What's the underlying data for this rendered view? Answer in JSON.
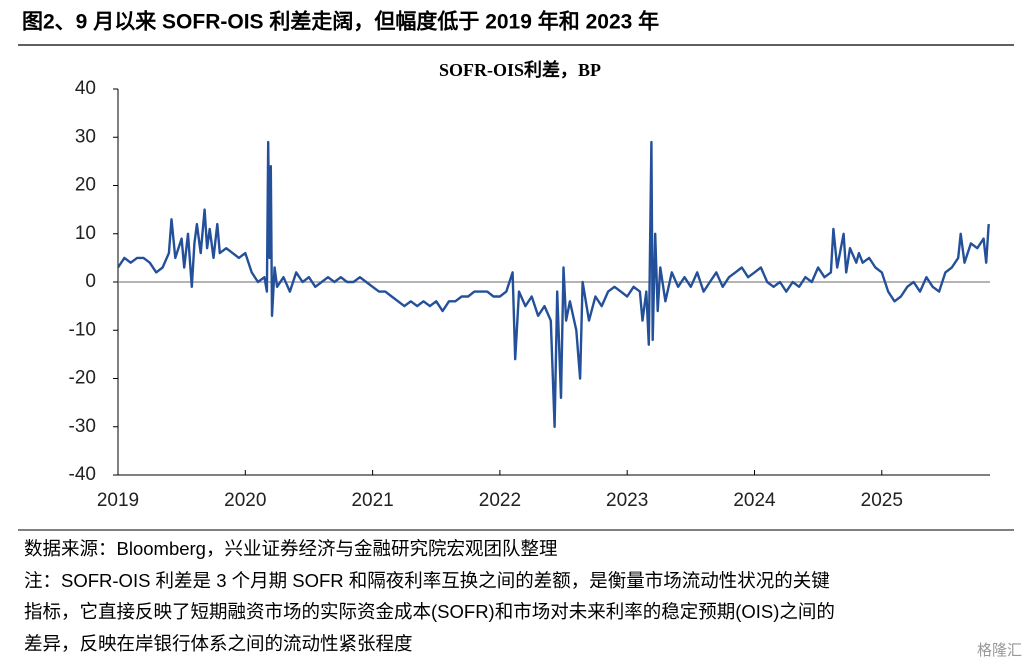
{
  "header": {
    "title": "图2、9 月以来 SOFR-OIS 利差走阔，但幅度低于 2019 年和 2023 年"
  },
  "chart_data": {
    "type": "line",
    "title": "SOFR-OIS利差，BP",
    "xlim": [
      2019,
      2025.85
    ],
    "xticks": [
      2019,
      2020,
      2021,
      2022,
      2023,
      2024,
      2025
    ],
    "ylim": [
      -40,
      40
    ],
    "yticks": [
      -40,
      -30,
      -20,
      -10,
      0,
      10,
      20,
      30,
      40
    ],
    "series": [
      {
        "color": "#24509a",
        "x": [
          2019.0,
          2019.05,
          2019.1,
          2019.15,
          2019.2,
          2019.25,
          2019.3,
          2019.35,
          2019.4,
          2019.42,
          2019.45,
          2019.5,
          2019.52,
          2019.55,
          2019.58,
          2019.6,
          2019.62,
          2019.65,
          2019.68,
          2019.7,
          2019.72,
          2019.75,
          2019.78,
          2019.8,
          2019.85,
          2019.9,
          2019.95,
          2020.0,
          2020.05,
          2020.1,
          2020.15,
          2020.17,
          2020.18,
          2020.19,
          2020.2,
          2020.21,
          2020.23,
          2020.25,
          2020.3,
          2020.35,
          2020.4,
          2020.45,
          2020.5,
          2020.55,
          2020.6,
          2020.65,
          2020.7,
          2020.75,
          2020.8,
          2020.85,
          2020.9,
          2020.95,
          2021.0,
          2021.05,
          2021.1,
          2021.15,
          2021.2,
          2021.25,
          2021.3,
          2021.35,
          2021.4,
          2021.45,
          2021.5,
          2021.55,
          2021.6,
          2021.65,
          2021.7,
          2021.75,
          2021.8,
          2021.85,
          2021.9,
          2021.95,
          2022.0,
          2022.05,
          2022.1,
          2022.12,
          2022.15,
          2022.2,
          2022.25,
          2022.3,
          2022.35,
          2022.4,
          2022.43,
          2022.45,
          2022.48,
          2022.5,
          2022.52,
          2022.55,
          2022.6,
          2022.63,
          2022.65,
          2022.7,
          2022.75,
          2022.8,
          2022.85,
          2022.9,
          2022.95,
          2023.0,
          2023.05,
          2023.1,
          2023.12,
          2023.15,
          2023.17,
          2023.19,
          2023.2,
          2023.22,
          2023.24,
          2023.26,
          2023.3,
          2023.35,
          2023.4,
          2023.45,
          2023.5,
          2023.55,
          2023.6,
          2023.65,
          2023.7,
          2023.75,
          2023.8,
          2023.85,
          2023.9,
          2023.95,
          2024.0,
          2024.05,
          2024.1,
          2024.15,
          2024.2,
          2024.25,
          2024.3,
          2024.35,
          2024.4,
          2024.45,
          2024.5,
          2024.55,
          2024.6,
          2024.62,
          2024.65,
          2024.7,
          2024.72,
          2024.75,
          2024.8,
          2024.82,
          2024.85,
          2024.9,
          2024.95,
          2025.0,
          2025.05,
          2025.1,
          2025.15,
          2025.2,
          2025.25,
          2025.3,
          2025.35,
          2025.4,
          2025.45,
          2025.5,
          2025.55,
          2025.6,
          2025.62,
          2025.65,
          2025.7,
          2025.75,
          2025.8,
          2025.82,
          2025.84
        ],
        "values": [
          3,
          5,
          4,
          5,
          5,
          4,
          2,
          3,
          6,
          13,
          5,
          9,
          3,
          10,
          -1,
          8,
          12,
          6,
          15,
          7,
          11,
          5,
          12,
          6,
          7,
          6,
          5,
          6,
          2,
          0,
          1,
          -2,
          29,
          5,
          24,
          -7,
          3,
          -1,
          1,
          -2,
          2,
          0,
          1,
          -1,
          0,
          1,
          0,
          1,
          0,
          0,
          1,
          0,
          -1,
          -2,
          -2,
          -3,
          -4,
          -5,
          -4,
          -5,
          -4,
          -5,
          -4,
          -6,
          -4,
          -4,
          -3,
          -3,
          -2,
          -2,
          -2,
          -3,
          -3,
          -2,
          2,
          -16,
          -2,
          -5,
          -3,
          -7,
          -5,
          -8,
          -30,
          -2,
          -24,
          3,
          -8,
          -4,
          -10,
          -20,
          0,
          -8,
          -3,
          -5,
          -2,
          -1,
          -2,
          -3,
          -1,
          -2,
          -8,
          -2,
          -13,
          29,
          -12,
          10,
          -6,
          3,
          -4,
          2,
          -1,
          1,
          -1,
          2,
          -2,
          0,
          2,
          -1,
          1,
          2,
          3,
          1,
          2,
          3,
          0,
          -1,
          0,
          -2,
          0,
          -1,
          1,
          0,
          3,
          1,
          2,
          11,
          3,
          10,
          2,
          7,
          4,
          6,
          4,
          5,
          3,
          2,
          -2,
          -4,
          -3,
          -1,
          0,
          -2,
          1,
          -1,
          -2,
          2,
          3,
          5,
          10,
          4,
          8,
          7,
          9,
          4,
          12
        ]
      }
    ]
  },
  "footer": {
    "source": "数据来源：Bloomberg，兴业证券经济与金融研究院宏观团队整理",
    "note": [
      "注：SOFR-OIS 利差是 3 个月期 SOFR 和隔夜利率互换之间的差额，是衡量市场流动性状况的关键",
      "指标，它直接反映了短期融资市场的实际资金成本(SOFR)和市场对未来利率的稳定预期(OIS)之间的",
      "差异，反映在岸银行体系之间的流动性紧张程度"
    ],
    "watermark": "格隆汇"
  }
}
